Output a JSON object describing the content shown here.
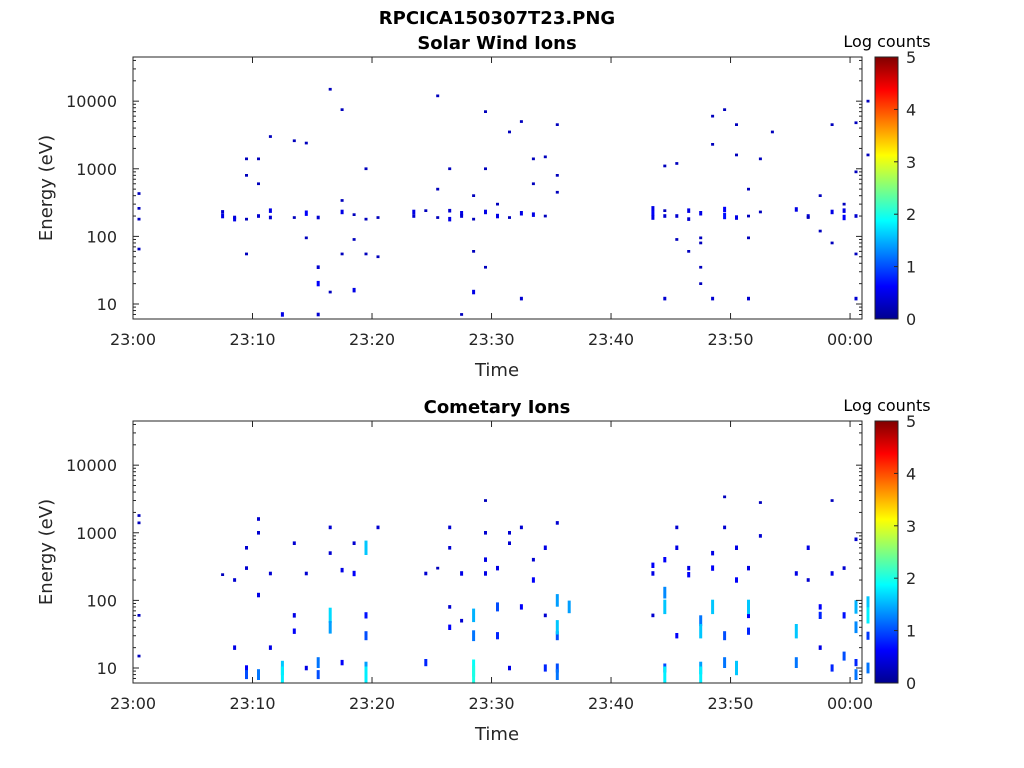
{
  "figure": {
    "title": "RPCICA150307T23.PNG"
  },
  "chart_data": [
    {
      "type": "heatmap",
      "title": "Solar Wind Ions",
      "xlabel": "Time",
      "ylabel": "Energy (eV)",
      "y_scale": "log",
      "ylim": [
        6,
        45000
      ],
      "xlim": [
        "23:00",
        "00:01"
      ],
      "x_ticks": [
        "23:00",
        "23:10",
        "23:20",
        "23:30",
        "23:40",
        "23:50",
        "00:00"
      ],
      "y_ticks": [
        "10",
        "100",
        "1000",
        "10000"
      ],
      "colorbar": {
        "label": "Log counts",
        "range": [
          0,
          5
        ],
        "ticks": [
          "0",
          "1",
          "2",
          "3",
          "4",
          "5"
        ],
        "colormap": "jet"
      },
      "points": [
        [
          "23:00",
          260,
          0.3
        ],
        [
          "23:00",
          430,
          0.3
        ],
        [
          "23:00",
          65,
          0.3
        ],
        [
          "23:00",
          180,
          0.3
        ],
        [
          "23:07",
          230,
          0.4
        ],
        [
          "23:07",
          200,
          0.5
        ],
        [
          "23:08",
          190,
          0.4
        ],
        [
          "23:08",
          180,
          0.5
        ],
        [
          "23:09",
          180,
          0.3
        ],
        [
          "23:09",
          55,
          0.3
        ],
        [
          "23:09",
          1400,
          0.3
        ],
        [
          "23:09",
          800,
          0.3
        ],
        [
          "23:10",
          200,
          0.4
        ],
        [
          "23:10",
          1400,
          0.3
        ],
        [
          "23:10",
          600,
          0.3
        ],
        [
          "23:11",
          240,
          0.5
        ],
        [
          "23:11",
          190,
          0.4
        ],
        [
          "23:11",
          3000,
          0.3
        ],
        [
          "23:12",
          7,
          0.5
        ],
        [
          "23:13",
          2600,
          0.3
        ],
        [
          "23:13",
          190,
          0.3
        ],
        [
          "23:14",
          220,
          0.6
        ],
        [
          "23:14",
          95,
          0.3
        ],
        [
          "23:14",
          2400,
          0.3
        ],
        [
          "23:15",
          190,
          0.4
        ],
        [
          "23:15",
          7,
          0.4
        ],
        [
          "23:15",
          20,
          0.6
        ],
        [
          "23:15",
          35,
          0.4
        ],
        [
          "23:16",
          15000,
          0.3
        ],
        [
          "23:16",
          15,
          0.3
        ],
        [
          "23:17",
          7500,
          0.3
        ],
        [
          "23:17",
          230,
          0.5
        ],
        [
          "23:17",
          340,
          0.3
        ],
        [
          "23:17",
          55,
          0.3
        ],
        [
          "23:18",
          210,
          0.3
        ],
        [
          "23:18",
          16,
          0.5
        ],
        [
          "23:18",
          90,
          0.3
        ],
        [
          "23:19",
          180,
          0.3
        ],
        [
          "23:19",
          1000,
          0.3
        ],
        [
          "23:19",
          55,
          0.3
        ],
        [
          "23:20",
          190,
          0.3
        ],
        [
          "23:20",
          50,
          0.3
        ],
        [
          "23:23",
          230,
          0.5
        ],
        [
          "23:23",
          200,
          0.4
        ],
        [
          "23:24",
          240,
          0.3
        ],
        [
          "23:25",
          190,
          0.3
        ],
        [
          "23:25",
          500,
          0.3
        ],
        [
          "23:25",
          12000,
          0.3
        ],
        [
          "23:26",
          1000,
          0.3
        ],
        [
          "23:26",
          240,
          0.4
        ],
        [
          "23:26",
          180,
          0.5
        ],
        [
          "23:27",
          220,
          0.5
        ],
        [
          "23:27",
          200,
          0.4
        ],
        [
          "23:27",
          7,
          0.3
        ],
        [
          "23:28",
          15,
          0.5
        ],
        [
          "23:28",
          180,
          0.3
        ],
        [
          "23:28",
          400,
          0.3
        ],
        [
          "23:28",
          60,
          0.3
        ],
        [
          "23:29",
          35,
          0.3
        ],
        [
          "23:29",
          7000,
          0.3
        ],
        [
          "23:29",
          230,
          0.5
        ],
        [
          "23:29",
          1000,
          0.3
        ],
        [
          "23:30",
          200,
          0.5
        ],
        [
          "23:30",
          300,
          0.3
        ],
        [
          "23:31",
          3500,
          0.3
        ],
        [
          "23:31",
          190,
          0.3
        ],
        [
          "23:32",
          5000,
          0.3
        ],
        [
          "23:32",
          12,
          0.4
        ],
        [
          "23:32",
          220,
          0.5
        ],
        [
          "23:33",
          1400,
          0.3
        ],
        [
          "23:33",
          210,
          0.5
        ],
        [
          "23:33",
          600,
          0.3
        ],
        [
          "23:34",
          1500,
          0.3
        ],
        [
          "23:34",
          200,
          0.3
        ],
        [
          "23:35",
          4500,
          0.3
        ],
        [
          "23:35",
          800,
          0.3
        ],
        [
          "23:35",
          450,
          0.3
        ],
        [
          "23:43",
          260,
          0.5
        ],
        [
          "23:43",
          220,
          0.6
        ],
        [
          "23:43",
          190,
          0.5
        ],
        [
          "23:44",
          200,
          0.4
        ],
        [
          "23:44",
          1100,
          0.3
        ],
        [
          "23:44",
          12,
          0.4
        ],
        [
          "23:44",
          240,
          0.3
        ],
        [
          "23:45",
          90,
          0.3
        ],
        [
          "23:45",
          1200,
          0.3
        ],
        [
          "23:45",
          200,
          0.4
        ],
        [
          "23:46",
          240,
          0.5
        ],
        [
          "23:46",
          180,
          0.4
        ],
        [
          "23:46",
          60,
          0.3
        ],
        [
          "23:47",
          220,
          0.5
        ],
        [
          "23:47",
          95,
          0.3
        ],
        [
          "23:47",
          80,
          0.3
        ],
        [
          "23:47",
          20,
          0.3
        ],
        [
          "23:47",
          35,
          0.3
        ],
        [
          "23:48",
          12,
          0.4
        ],
        [
          "23:48",
          6000,
          0.3
        ],
        [
          "23:48",
          2300,
          0.3
        ],
        [
          "23:49",
          7500,
          0.3
        ],
        [
          "23:49",
          250,
          0.6
        ],
        [
          "23:49",
          200,
          0.7
        ],
        [
          "23:50",
          190,
          0.5
        ],
        [
          "23:50",
          1600,
          0.3
        ],
        [
          "23:50",
          4500,
          0.3
        ],
        [
          "23:51",
          12,
          0.4
        ],
        [
          "23:51",
          500,
          0.3
        ],
        [
          "23:51",
          200,
          0.3
        ],
        [
          "23:51",
          95,
          0.3
        ],
        [
          "23:52",
          230,
          0.3
        ],
        [
          "23:52",
          1400,
          0.3
        ],
        [
          "23:53",
          3500,
          0.3
        ],
        [
          "23:55",
          250,
          0.5
        ],
        [
          "23:56",
          200,
          0.4
        ],
        [
          "23:56",
          190,
          0.3
        ],
        [
          "23:57",
          120,
          0.3
        ],
        [
          "23:57",
          400,
          0.3
        ],
        [
          "23:58",
          230,
          0.5
        ],
        [
          "23:58",
          80,
          0.3
        ],
        [
          "23:58",
          4500,
          0.3
        ],
        [
          "23:59",
          190,
          0.6
        ],
        [
          "23:59",
          240,
          0.5
        ],
        [
          "23:59",
          300,
          0.3
        ],
        [
          "00:00",
          200,
          0.4
        ],
        [
          "00:00",
          900,
          0.3
        ],
        [
          "00:00",
          4800,
          0.3
        ],
        [
          "00:00",
          12,
          0.4
        ],
        [
          "00:00",
          55,
          0.3
        ],
        [
          "00:01",
          10000,
          0.3
        ],
        [
          "00:01",
          1600,
          0.3
        ]
      ]
    },
    {
      "type": "heatmap",
      "title": "Cometary Ions",
      "xlabel": "Time",
      "ylabel": "Energy (eV)",
      "y_scale": "log",
      "ylim": [
        6,
        45000
      ],
      "xlim": [
        "23:00",
        "00:01"
      ],
      "x_ticks": [
        "23:00",
        "23:10",
        "23:20",
        "23:30",
        "23:40",
        "23:50",
        "00:00"
      ],
      "y_ticks": [
        "10",
        "100",
        "1000",
        "10000"
      ],
      "colorbar": {
        "label": "Log counts",
        "range": [
          0,
          5
        ],
        "ticks": [
          "0",
          "1",
          "2",
          "3",
          "4",
          "5"
        ],
        "colormap": "jet"
      },
      "points": [
        [
          "23:00",
          1400,
          0.3
        ],
        [
          "23:00",
          1800,
          0.3
        ],
        [
          "23:00",
          60,
          0.3
        ],
        [
          "23:00",
          15,
          0.3
        ],
        [
          "23:07",
          240,
          0.3
        ],
        [
          "23:08",
          200,
          0.4
        ],
        [
          "23:08",
          20,
          0.5
        ],
        [
          "23:09",
          10,
          0.6
        ],
        [
          "23:09",
          8,
          1.0
        ],
        [
          "23:09",
          600,
          0.4
        ],
        [
          "23:09",
          300,
          0.4
        ],
        [
          "23:10",
          1000,
          0.4
        ],
        [
          "23:10",
          1600,
          0.4
        ],
        [
          "23:10",
          120,
          0.5
        ],
        [
          "23:10",
          8,
          1.2
        ],
        [
          "23:11",
          20,
          0.5
        ],
        [
          "23:11",
          250,
          0.4
        ],
        [
          "23:12",
          10,
          1.6
        ],
        [
          "23:12",
          8,
          1.8
        ],
        [
          "23:13",
          60,
          0.5
        ],
        [
          "23:13",
          35,
          0.6
        ],
        [
          "23:13",
          700,
          0.4
        ],
        [
          "23:14",
          250,
          0.4
        ],
        [
          "23:14",
          10,
          0.5
        ],
        [
          "23:15",
          12,
          1.2
        ],
        [
          "23:15",
          8,
          1.0
        ],
        [
          "23:16",
          60,
          1.7
        ],
        [
          "23:16",
          40,
          1.4
        ],
        [
          "23:16",
          1200,
          0.4
        ],
        [
          "23:16",
          500,
          0.4
        ],
        [
          "23:17",
          12,
          0.6
        ],
        [
          "23:17",
          280,
          0.5
        ],
        [
          "23:18",
          250,
          0.6
        ],
        [
          "23:18",
          700,
          0.4
        ],
        [
          "23:19",
          60,
          0.7
        ],
        [
          "23:19",
          30,
          1.0
        ],
        [
          "23:19",
          10,
          1.4
        ],
        [
          "23:19",
          8,
          1.8
        ],
        [
          "23:19",
          600,
          1.6
        ],
        [
          "23:20",
          1200,
          0.4
        ],
        [
          "23:24",
          250,
          0.4
        ],
        [
          "23:24",
          12,
          0.8
        ],
        [
          "23:25",
          300,
          0.3
        ],
        [
          "23:26",
          600,
          0.4
        ],
        [
          "23:26",
          1200,
          0.4
        ],
        [
          "23:26",
          80,
          0.4
        ],
        [
          "23:26",
          40,
          0.6
        ],
        [
          "23:27",
          250,
          0.5
        ],
        [
          "23:27",
          50,
          0.4
        ],
        [
          "23:28",
          10,
          1.9
        ],
        [
          "23:28",
          8,
          2.0
        ],
        [
          "23:28",
          60,
          1.5
        ],
        [
          "23:28",
          30,
          1.2
        ],
        [
          "23:29",
          400,
          0.5
        ],
        [
          "23:29",
          250,
          0.5
        ],
        [
          "23:29",
          3000,
          0.3
        ],
        [
          "23:29",
          1000,
          0.4
        ],
        [
          "23:30",
          30,
          0.8
        ],
        [
          "23:30",
          80,
          1.0
        ],
        [
          "23:30",
          300,
          0.5
        ],
        [
          "23:31",
          1000,
          0.4
        ],
        [
          "23:31",
          700,
          0.4
        ],
        [
          "23:31",
          10,
          0.5
        ],
        [
          "23:32",
          1200,
          0.4
        ],
        [
          "23:32",
          80,
          0.6
        ],
        [
          "23:33",
          400,
          0.4
        ],
        [
          "23:33",
          200,
          0.6
        ],
        [
          "23:34",
          60,
          0.4
        ],
        [
          "23:34",
          600,
          0.5
        ],
        [
          "23:34",
          10,
          0.8
        ],
        [
          "23:35",
          100,
          1.4
        ],
        [
          "23:35",
          30,
          1.0
        ],
        [
          "23:35",
          40,
          1.6
        ],
        [
          "23:35",
          10,
          1.0
        ],
        [
          "23:35",
          8,
          1.2
        ],
        [
          "23:35",
          1400,
          0.4
        ],
        [
          "23:36",
          80,
          1.4
        ],
        [
          "23:43",
          330,
          0.6
        ],
        [
          "23:43",
          250,
          0.5
        ],
        [
          "23:43",
          60,
          0.4
        ],
        [
          "23:44",
          400,
          0.6
        ],
        [
          "23:44",
          130,
          1.3
        ],
        [
          "23:44",
          80,
          1.6
        ],
        [
          "23:44",
          10,
          1.0
        ],
        [
          "23:44",
          8,
          1.8
        ],
        [
          "23:45",
          30,
          0.6
        ],
        [
          "23:45",
          600,
          0.5
        ],
        [
          "23:45",
          1200,
          0.4
        ],
        [
          "23:46",
          300,
          0.5
        ],
        [
          "23:46",
          240,
          0.6
        ],
        [
          "23:47",
          50,
          1.2
        ],
        [
          "23:47",
          35,
          1.6
        ],
        [
          "23:47",
          10,
          1.4
        ],
        [
          "23:47",
          8,
          1.8
        ],
        [
          "23:48",
          500,
          0.5
        ],
        [
          "23:48",
          80,
          1.6
        ],
        [
          "23:48",
          300,
          0.6
        ],
        [
          "23:49",
          3400,
          0.3
        ],
        [
          "23:49",
          1200,
          0.4
        ],
        [
          "23:49",
          30,
          1.0
        ],
        [
          "23:49",
          12,
          1.2
        ],
        [
          "23:50",
          200,
          0.6
        ],
        [
          "23:50",
          600,
          0.5
        ],
        [
          "23:50",
          10,
          1.6
        ],
        [
          "23:51",
          300,
          0.5
        ],
        [
          "23:51",
          60,
          0.6
        ],
        [
          "23:51",
          80,
          1.6
        ],
        [
          "23:51",
          35,
          0.8
        ],
        [
          "23:52",
          2800,
          0.3
        ],
        [
          "23:52",
          900,
          0.4
        ],
        [
          "23:55",
          250,
          0.5
        ],
        [
          "23:55",
          35,
          1.6
        ],
        [
          "23:55",
          12,
          1.2
        ],
        [
          "23:56",
          600,
          0.5
        ],
        [
          "23:56",
          200,
          0.4
        ],
        [
          "23:57",
          80,
          0.6
        ],
        [
          "23:57",
          60,
          0.8
        ],
        [
          "23:57",
          20,
          0.5
        ],
        [
          "23:58",
          250,
          0.5
        ],
        [
          "23:58",
          3000,
          0.3
        ],
        [
          "23:58",
          10,
          0.8
        ],
        [
          "23:59",
          60,
          0.7
        ],
        [
          "23:59",
          15,
          1.0
        ],
        [
          "23:59",
          300,
          0.4
        ],
        [
          "00:00",
          80,
          1.5
        ],
        [
          "00:00",
          40,
          1.3
        ],
        [
          "00:00",
          8,
          1.2
        ],
        [
          "00:00",
          12,
          0.8
        ],
        [
          "00:00",
          800,
          0.4
        ],
        [
          "00:01",
          90,
          1.6
        ],
        [
          "00:01",
          30,
          0.9
        ],
        [
          "00:01",
          10,
          1.2
        ],
        [
          "00:01",
          60,
          1.8
        ]
      ]
    }
  ]
}
